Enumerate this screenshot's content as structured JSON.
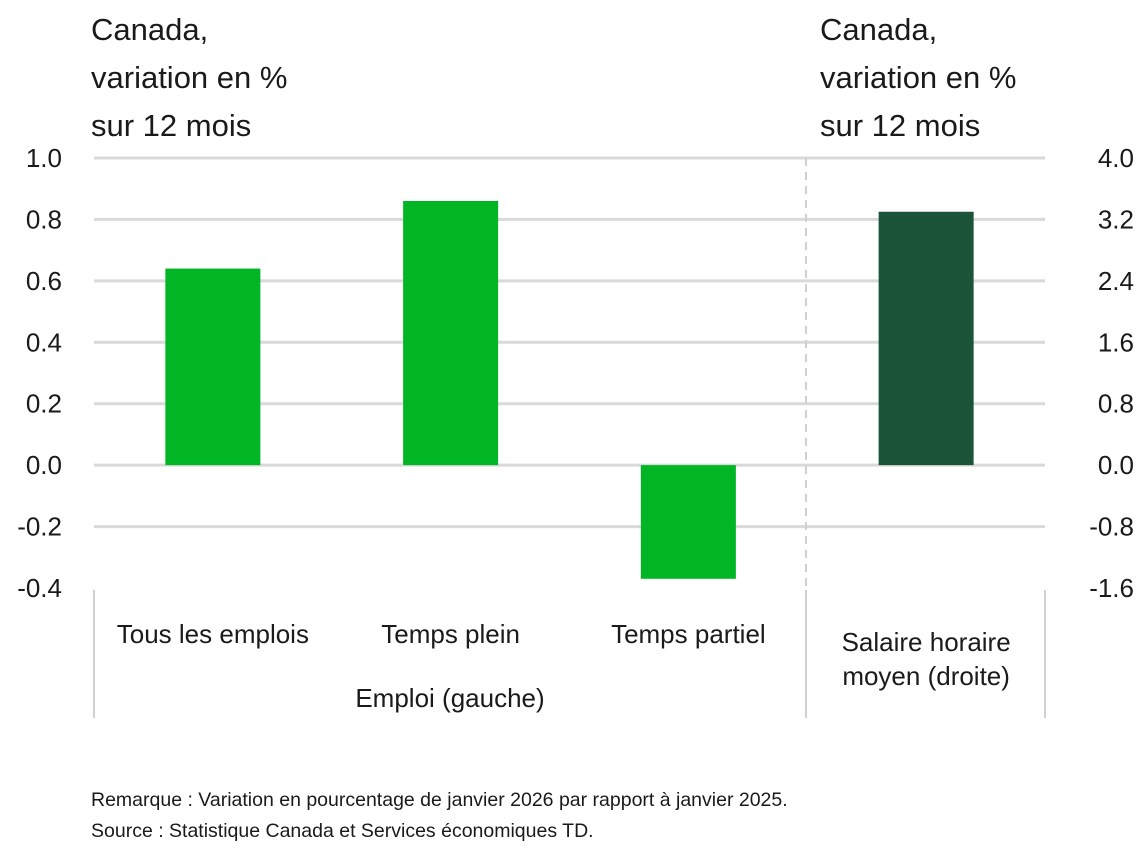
{
  "chart_data": {
    "type": "bar",
    "left_axis_title": "Canada,\nvariation en %\nsur 12 mois",
    "right_axis_title": "Canada,\nvariation en %\nsur 12 mois",
    "categories": [
      "Tous les emplois",
      "Temps plein",
      "Temps partiel",
      "Salaire horaire moyen (droite)"
    ],
    "category_lines": [
      [
        "Tous les emplois"
      ],
      [
        "Temps plein"
      ],
      [
        "Temps partiel"
      ],
      [
        "Salaire horaire",
        "moyen (droite)"
      ]
    ],
    "group_label": "Emploi (gauche)",
    "values": [
      0.64,
      0.86,
      -0.37,
      3.3
    ],
    "axis": [
      "left",
      "left",
      "left",
      "right"
    ],
    "colors": [
      "#00b624",
      "#00b624",
      "#00b624",
      "#1b5439"
    ],
    "left_ylim": [
      -0.4,
      1.0
    ],
    "left_ticks": [
      "1.0",
      "0.8",
      "0.6",
      "0.4",
      "0.2",
      "0.0",
      "-0.2",
      "-0.4"
    ],
    "right_ylim": [
      -1.6,
      4.0
    ],
    "right_ticks": [
      "4.0",
      "3.2",
      "2.4",
      "1.6",
      "0.8",
      "0.0",
      "-0.8",
      "-1.6"
    ],
    "grid": true
  },
  "notes": {
    "remark": "Remarque : Variation en pourcentage de janvier 2026 par rapport à janvier 2025.",
    "source": "Source : Statistique Canada et Services économiques TD."
  }
}
